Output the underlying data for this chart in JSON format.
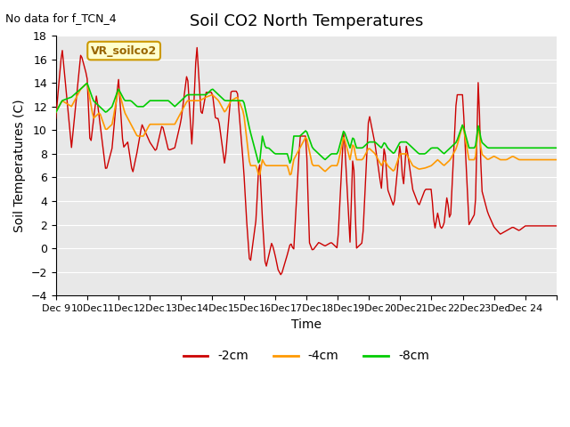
{
  "title": "Soil CO2 North Temperatures",
  "subtitle": "No data for f_TCN_4",
  "xlabel": "Time",
  "ylabel": "Soil Temperatures (C)",
  "ylim": [
    -4,
    18
  ],
  "yticks": [
    -4,
    -2,
    0,
    2,
    4,
    6,
    8,
    10,
    12,
    14,
    16,
    18
  ],
  "tick_labels": [
    "Dec 9",
    "10Dec",
    "11Dec",
    "12Dec",
    "13Dec",
    "14Dec",
    "15Dec",
    "16Dec",
    "17Dec",
    "18Dec",
    "19Dec",
    "20Dec",
    "21Dec",
    "22Dec",
    "23Dec",
    "Dec 24",
    ""
  ],
  "legend_label": "VR_soilco2",
  "legend_labels": [
    "-2cm",
    "-4cm",
    "-8cm"
  ],
  "colors": [
    "#cc0000",
    "#ff9900",
    "#00cc00"
  ],
  "plot_bg_color": "#e8e8e8",
  "title_fontsize": 13,
  "label_fontsize": 10,
  "tick_fontsize": 9,
  "n_days": 16
}
